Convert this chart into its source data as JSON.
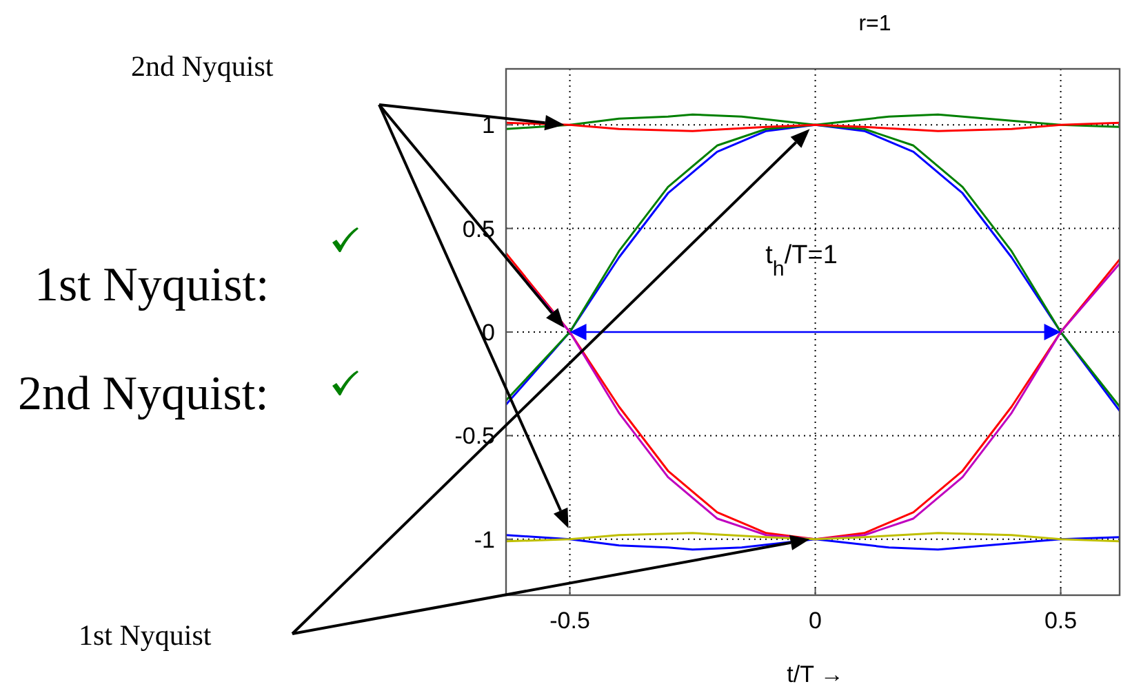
{
  "chart_data": {
    "type": "line",
    "title": "r=1",
    "xlabel": "t/T →",
    "xlim": [
      -0.63,
      0.62
    ],
    "ylim": [
      -1.27,
      1.27
    ],
    "xticks": [
      -0.5,
      0,
      0.5
    ],
    "yticks": [
      -1,
      -0.5,
      0,
      0.5,
      1
    ],
    "grid": true,
    "marker": "none",
    "line_style": "solid",
    "annotations": [
      "2nd Nyquist",
      "1st Nyquist:",
      "2nd Nyquist:",
      "1st Nyquist",
      "t$_{h}$/T=1"
    ],
    "series": [
      {
        "color": "#0000ff",
        "x": [
          -0.63,
          -0.5,
          -0.4,
          -0.3,
          -0.2,
          -0.1,
          0,
          0.1,
          0.2,
          0.3,
          0.4,
          0.5,
          0.62
        ],
        "values": [
          -0.35,
          0,
          0.36,
          0.67,
          0.87,
          0.97,
          1,
          0.97,
          0.87,
          0.67,
          0.36,
          0,
          -0.38
        ]
      },
      {
        "color": "#008000",
        "x": [
          -0.63,
          -0.5,
          -0.4,
          -0.3,
          -0.2,
          -0.1,
          0,
          0.1,
          0.2,
          0.3,
          0.4,
          0.5,
          0.62
        ],
        "values": [
          -0.33,
          0,
          0.39,
          0.7,
          0.9,
          0.98,
          1,
          0.98,
          0.9,
          0.7,
          0.39,
          0,
          -0.36
        ]
      },
      {
        "color": "#ff0000",
        "x": [
          -0.63,
          -0.5,
          -0.4,
          -0.3,
          -0.2,
          -0.1,
          0,
          0.1,
          0.2,
          0.3,
          0.4,
          0.5,
          0.62
        ],
        "values": [
          0.38,
          0,
          -0.36,
          -0.67,
          -0.87,
          -0.97,
          -1,
          -0.97,
          -0.87,
          -0.67,
          -0.36,
          0,
          0.35
        ]
      },
      {
        "color": "#bf00bf",
        "x": [
          -0.63,
          -0.5,
          -0.4,
          -0.3,
          -0.2,
          -0.1,
          0,
          0.1,
          0.2,
          0.3,
          0.4,
          0.5,
          0.62
        ],
        "values": [
          0.36,
          0,
          -0.39,
          -0.7,
          -0.9,
          -0.98,
          -1,
          -0.98,
          -0.9,
          -0.7,
          -0.39,
          0,
          0.33
        ]
      },
      {
        "color": "#008000",
        "x": [
          -0.63,
          -0.5,
          -0.4,
          -0.3,
          -0.25,
          -0.15,
          0,
          0.15,
          0.25,
          0.35,
          0.5,
          0.62
        ],
        "values": [
          0.98,
          1,
          1.03,
          1.04,
          1.05,
          1.04,
          1,
          1.04,
          1.05,
          1.03,
          1,
          0.99
        ]
      },
      {
        "color": "#ff0000",
        "x": [
          -0.63,
          -0.5,
          -0.4,
          -0.25,
          -0.1,
          0,
          0.1,
          0.25,
          0.4,
          0.5,
          0.62
        ],
        "values": [
          1.01,
          1,
          0.98,
          0.97,
          0.99,
          1,
          0.99,
          0.97,
          0.98,
          1,
          1.01
        ]
      },
      {
        "color": "#0000ff",
        "x": [
          -0.63,
          -0.5,
          -0.4,
          -0.3,
          -0.25,
          -0.15,
          0,
          0.15,
          0.25,
          0.35,
          0.5,
          0.62
        ],
        "values": [
          -0.98,
          -1,
          -1.03,
          -1.04,
          -1.05,
          -1.04,
          -1,
          -1.04,
          -1.05,
          -1.03,
          -1,
          -0.99
        ]
      },
      {
        "color": "#bfbf00",
        "x": [
          -0.63,
          -0.5,
          -0.4,
          -0.25,
          -0.1,
          0,
          0.1,
          0.25,
          0.4,
          0.5,
          0.62
        ],
        "values": [
          -1.01,
          -1,
          -0.98,
          -0.97,
          -0.99,
          -1,
          -0.99,
          -0.97,
          -0.98,
          -1,
          -1.01
        ]
      }
    ]
  }
}
